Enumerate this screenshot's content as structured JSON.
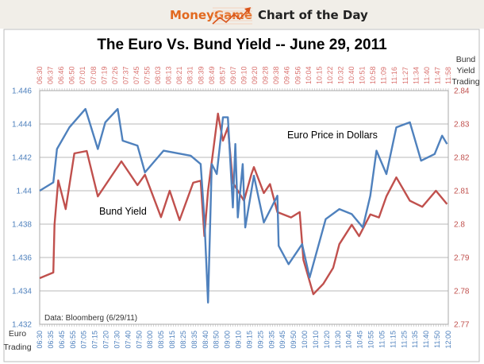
{
  "header": {
    "brand": "MoneyGame",
    "section": "Chart of the Day"
  },
  "chart_data": {
    "type": "line",
    "title": "The Euro Vs. Bund Yield -- June 29, 2011",
    "x_unit": "minutes since 06:30",
    "left_axis": {
      "label_line1": "Euro",
      "label_line2": "Trading",
      "range": [
        1.432,
        1.446
      ],
      "ticks": [
        "1.432",
        "1.434",
        "1.436",
        "1.438",
        "1.44",
        "1.442",
        "1.444",
        "1.446"
      ],
      "color": "#4f81bd"
    },
    "right_axis": {
      "label_line1": "Bund",
      "label_line2": "Yield",
      "label_line3": "Trading",
      "range": [
        2.77,
        2.84
      ],
      "ticks": [
        "2.77",
        "2.78",
        "2.79",
        "2.8",
        "2.81",
        "2.82",
        "2.83",
        "2.84"
      ],
      "color": "#c0504d"
    },
    "bottom_ticks": [
      "06:30",
      "06:35",
      "06:45",
      "06:55",
      "07:05",
      "07:15",
      "07:20",
      "07:30",
      "07:40",
      "07:50",
      "08:00",
      "08:05",
      "08:15",
      "08:25",
      "08:35",
      "08:40",
      "08:50",
      "09:00",
      "09:10",
      "09:15",
      "09:25",
      "09:35",
      "09:45",
      "09:50",
      "10:00",
      "10:10",
      "10:20",
      "10:30",
      "10:40",
      "10:45",
      "10:55",
      "11:05",
      "11:15",
      "11:25",
      "11:35",
      "11:40",
      "11:50",
      "12:00"
    ],
    "top_ticks": [
      "06:30",
      "06:37",
      "06:46",
      "06:50",
      "07:01",
      "07:08",
      "07:19",
      "07:26",
      "07:37",
      "07:45",
      "07:55",
      "08:03",
      "08:13",
      "08:21",
      "08:31",
      "08:39",
      "08:49",
      "08:57",
      "09:07",
      "09:10",
      "09:20",
      "09:28",
      "09:38",
      "09:46",
      "09:56",
      "10:04",
      "10:15",
      "10:22",
      "10:32",
      "10:40",
      "10:51",
      "10:58",
      "11:09",
      "11:16",
      "11:27",
      "11:34",
      "11:40",
      "11:47",
      "11:58"
    ],
    "grid": true,
    "series": [
      {
        "name": "Euro Price in Dollars",
        "axis": "left",
        "color": "#4f81bd",
        "x": [
          0,
          11,
          14,
          24,
          37,
          47,
          53,
          63,
          67,
          79,
          85,
          100,
          122,
          130,
          133,
          136,
          139,
          143,
          148,
          152,
          156,
          158,
          160,
          164,
          166,
          173,
          181,
          192,
          193,
          201,
          212,
          218,
          231,
          242,
          252,
          261,
          267,
          272,
          280,
          288,
          299,
          308,
          319,
          325,
          329
        ],
        "y": [
          1.44,
          1.4405,
          1.4425,
          1.4438,
          1.4449,
          1.4425,
          1.4441,
          1.4449,
          1.443,
          1.4427,
          1.4411,
          1.4424,
          1.4421,
          1.4416,
          1.4383,
          1.4333,
          1.4416,
          1.441,
          1.4444,
          1.4444,
          1.439,
          1.4428,
          1.4384,
          1.4416,
          1.4378,
          1.4409,
          1.4381,
          1.4397,
          1.4367,
          1.4356,
          1.4368,
          1.4348,
          1.4383,
          1.4389,
          1.4386,
          1.4378,
          1.4397,
          1.4424,
          1.441,
          1.4438,
          1.4441,
          1.4418,
          1.4422,
          1.4433,
          1.4428
        ]
      },
      {
        "name": "Bund Yield",
        "axis": "right",
        "color": "#c0504d",
        "x": [
          0,
          11,
          12,
          15,
          21,
          28,
          38,
          47,
          66,
          79,
          85,
          98,
          105,
          113,
          124,
          130,
          133,
          136,
          144,
          148,
          152,
          156,
          165,
          171,
          173,
          181,
          186,
          192,
          203,
          210,
          213,
          221,
          229,
          237,
          242,
          252,
          258,
          267,
          274,
          280,
          288,
          299,
          309,
          320,
          329
        ],
        "y": [
          2.7838,
          2.7855,
          2.7998,
          2.8131,
          2.8045,
          2.8212,
          2.8219,
          2.8083,
          2.8188,
          2.8117,
          2.8148,
          2.8021,
          2.81,
          2.8012,
          2.8124,
          2.813,
          2.7964,
          2.81,
          2.8331,
          2.825,
          2.829,
          2.8124,
          2.807,
          2.815,
          2.8171,
          2.8093,
          2.812,
          2.8036,
          2.802,
          2.8036,
          2.7893,
          2.779,
          2.7821,
          2.7869,
          2.794,
          2.7998,
          2.7964,
          2.8029,
          2.802,
          2.8083,
          2.814,
          2.807,
          2.8052,
          2.81,
          2.806
        ]
      }
    ],
    "annotations": {
      "euro": "Euro Price in Dollars",
      "bund": "Bund Yield",
      "source": "Data: Bloomberg (6/29/11)"
    }
  }
}
